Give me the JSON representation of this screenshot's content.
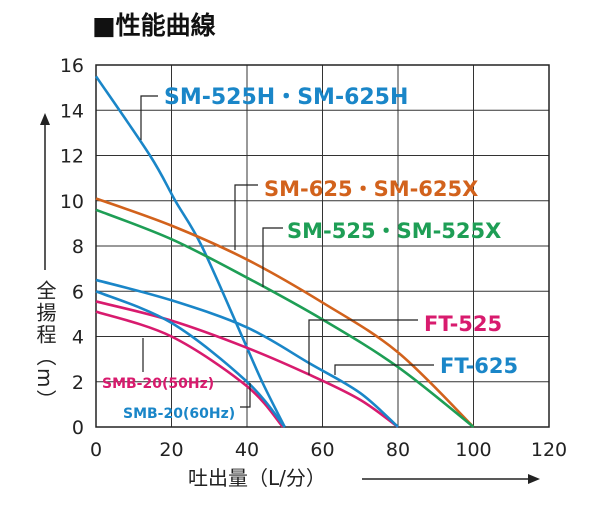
{
  "title": "■性能曲線",
  "chart_data": {
    "type": "line",
    "title": "■性能曲線",
    "xlabel": "吐出量（L/分）",
    "ylabel": "全揚程（m）",
    "xlim": [
      0,
      120
    ],
    "ylim": [
      0,
      16
    ],
    "xticks": [
      0,
      20,
      40,
      60,
      80,
      100,
      120
    ],
    "yticks": [
      2,
      4,
      6,
      8,
      10,
      12,
      14,
      16
    ],
    "grid": true,
    "series": [
      {
        "name": "SM-525H・SM-625H",
        "color": "#1a86c8",
        "x": [
          0,
          14.3,
          21,
          28,
          38.7,
          44,
          50
        ],
        "y": [
          15.5,
          12,
          10,
          8,
          4,
          2,
          0
        ]
      },
      {
        "name": "SM-625・SM-625X",
        "color": "#d2621c",
        "x": [
          0,
          20,
          40,
          60,
          80,
          100
        ],
        "y": [
          10.1,
          8.9,
          7.4,
          5.5,
          3.3,
          0
        ]
      },
      {
        "name": "SM-525・SM-525X",
        "color": "#1e9e55",
        "x": [
          0,
          20,
          40,
          60,
          80,
          100
        ],
        "y": [
          9.6,
          8.3,
          6.6,
          4.75,
          2.65,
          0
        ]
      },
      {
        "name": "FT-525",
        "color": "#d81b6e",
        "x": [
          0,
          20,
          40,
          56.7,
          70,
          80
        ],
        "y": [
          5.55,
          4.7,
          3.5,
          2.3,
          1.2,
          0
        ]
      },
      {
        "name": "FT-625",
        "color": "#1a86c8",
        "x": [
          0,
          20,
          40,
          56.7,
          70,
          80
        ],
        "y": [
          6.5,
          5.6,
          4.4,
          2.8,
          1.5,
          0
        ]
      },
      {
        "name": "SMB-20(50Hz)",
        "color": "#d81b6e",
        "x": [
          0,
          20,
          40,
          49.5
        ],
        "y": [
          5.1,
          4.0,
          1.8,
          0
        ]
      },
      {
        "name": "SMB-20(60Hz)",
        "color": "#1a86c8",
        "x": [
          0,
          20,
          40,
          50
        ],
        "y": [
          6.0,
          4.6,
          2.0,
          0
        ]
      }
    ]
  }
}
